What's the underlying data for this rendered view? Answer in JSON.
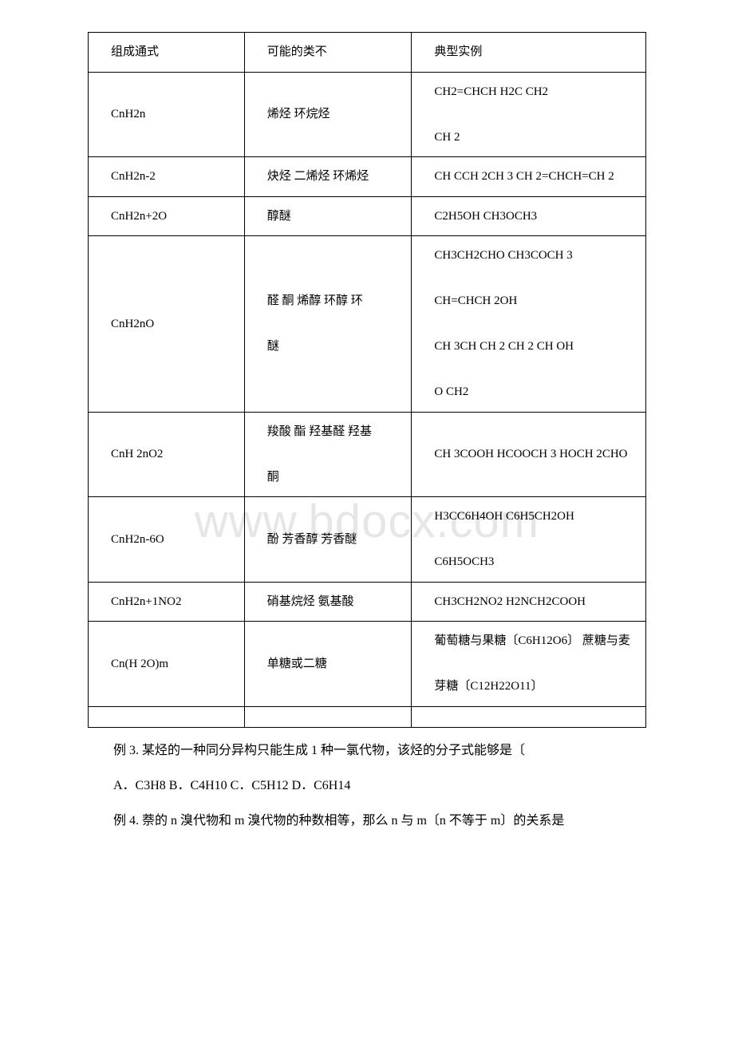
{
  "watermark": "www.bdocx.com",
  "table": {
    "headers": {
      "col1": "组成通式",
      "col2": "可能的类不",
      "col3": "典型实例"
    },
    "rows": [
      {
        "formula": "CnH2n",
        "types": "烯烃 环烷烃",
        "examples": "CH2=CHCH H2C CH2\n\nCH 2"
      },
      {
        "formula": "CnH2n-2",
        "types": "炔烃 二烯烃 环烯烃",
        "examples": "CH CCH 2CH 3 CH 2=CHCH=CH 2"
      },
      {
        "formula": "CnH2n+2O",
        "types": "醇醚",
        "examples": "C2H5OH CH3OCH3"
      },
      {
        "formula": "CnH2nO",
        "types": "醛 酮 烯醇 环醇 环\n\n醚",
        "examples": "CH3CH2CHO CH3COCH 3\n\nCH=CHCH 2OH\n\nCH 3CH CH 2 CH 2 CH OH\n\nO CH2"
      },
      {
        "formula": "CnH 2nO2",
        "types": "羧酸 酯 羟基醛 羟基\n\n酮",
        "examples": "CH 3COOH HCOOCH 3 HOCH 2CHO"
      },
      {
        "formula": "CnH2n-6O",
        "types": "酚 芳香醇 芳香醚",
        "examples": "H3CC6H4OH C6H5CH2OH\n\nC6H5OCH3"
      },
      {
        "formula": "CnH2n+1NO2",
        "types": "硝基烷烃 氨基酸",
        "examples": "CH3CH2NO2 H2NCH2COOH"
      },
      {
        "formula": "Cn(H 2O)m",
        "types": "单糖或二糖",
        "examples": "葡萄糖与果糖〔C6H12O6〕 蔗糖与麦\n\n芽糖〔C12H22O11〕"
      }
    ]
  },
  "paragraphs": {
    "p1": "例 3. 某烃的一种同分异构只能生成 1 种一氯代物，该烃的分子式能够是〔",
    "p2": "A．C3H8 B．C4H10 C．C5H12 D．C6H14",
    "p3": "例 4. 萘的 n 溴代物和 m 溴代物的种数相等，那么 n 与 m〔n 不等于 m〕的关系是"
  }
}
